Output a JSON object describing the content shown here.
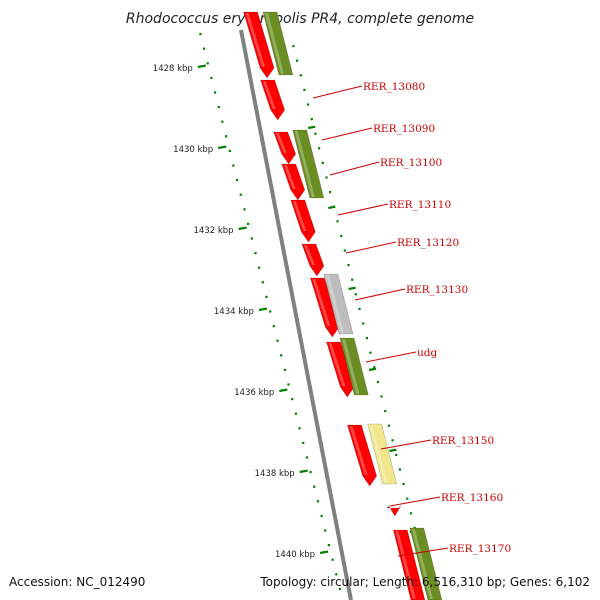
{
  "title": "Rhodococcus erythropolis PR4, complete genome",
  "footer": {
    "accession_text": "Accession: NC_012490",
    "summary_text": "Topology: circular; Length: 6,516,310 bp; Genes: 6,102"
  },
  "scale": {
    "tick_labels": [
      "1428 kbp",
      "1430 kbp",
      "1432 kbp",
      "1434 kbp",
      "1436 kbp",
      "1438 kbp",
      "1440 kbp"
    ]
  },
  "gene_labels": [
    "RER_13080",
    "RER_13090",
    "RER_13100",
    "RER_13110",
    "RER_13120",
    "RER_13130",
    "udg",
    "RER_13150",
    "RER_13160",
    "RER_13170"
  ],
  "colors": {
    "backbone": "#808080",
    "gene": "#ff0000",
    "cds": "#6b8e23",
    "pseudo": "#bdbdbd",
    "other": "#f0e68c",
    "tick": "#008000",
    "label": "#cc0000"
  }
}
